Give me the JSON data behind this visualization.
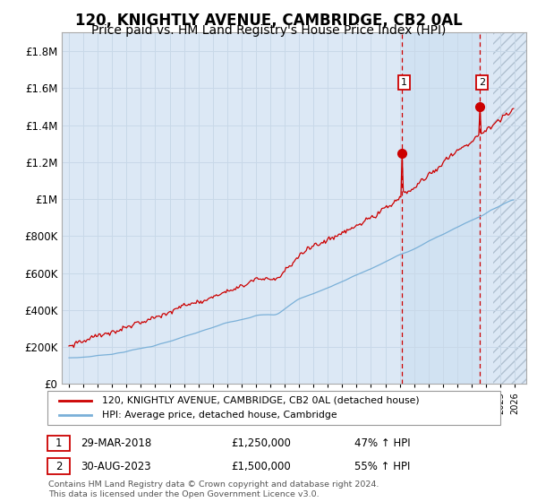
{
  "title": "120, KNIGHTLY AVENUE, CAMBRIDGE, CB2 0AL",
  "subtitle": "Price paid vs. HM Land Registry's House Price Index (HPI)",
  "title_fontsize": 12,
  "subtitle_fontsize": 10,
  "red_line_label": "120, KNIGHTLY AVENUE, CAMBRIDGE, CB2 0AL (detached house)",
  "blue_line_label": "HPI: Average price, detached house, Cambridge",
  "ann1_date_str": "29-MAR-2018",
  "ann1_price_str": "£1,250,000",
  "ann1_hpi_str": "47% ↑ HPI",
  "ann1_value": 1250000,
  "ann2_date_str": "30-AUG-2023",
  "ann2_price_str": "£1,500,000",
  "ann2_hpi_str": "55% ↑ HPI",
  "ann2_value": 1500000,
  "ylabel_ticks": [
    "£0",
    "£200K",
    "£400K",
    "£600K",
    "£800K",
    "£1M",
    "£1.2M",
    "£1.4M",
    "£1.6M",
    "£1.8M"
  ],
  "ylabel_values": [
    0,
    200000,
    400000,
    600000,
    800000,
    1000000,
    1200000,
    1400000,
    1600000,
    1800000
  ],
  "ylim": [
    0,
    1900000
  ],
  "background_color": "#ffffff",
  "plot_bg_color": "#dce8f5",
  "grid_color": "#c8d8e8",
  "red_color": "#cc0000",
  "blue_color": "#7ab0d8",
  "hatch_color": "#b8c8d8",
  "future_start_year": 2024.5,
  "xlim_min": 1994.5,
  "xlim_max": 2026.8,
  "footnote": "Contains HM Land Registry data © Crown copyright and database right 2024.\nThis data is licensed under the Open Government Licence v3.0."
}
